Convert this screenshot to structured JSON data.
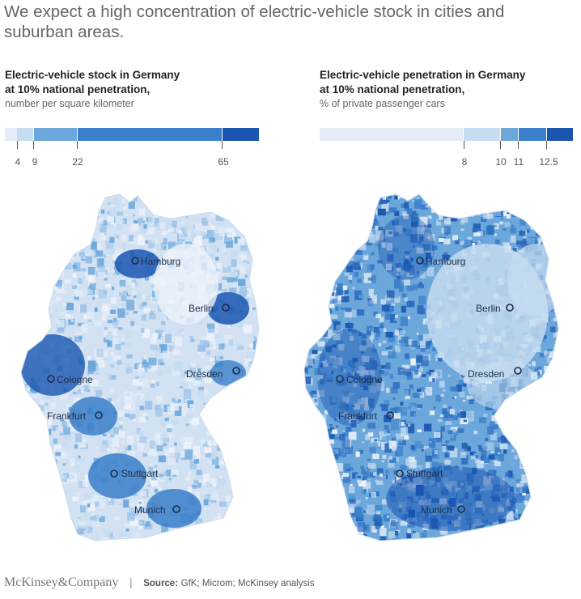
{
  "headline": "We expect a high concentration of electric-vehicle stock in cities and suburban areas.",
  "left_panel": {
    "title_line1": "Electric-vehicle stock in Germany",
    "title_line2": "at 10% national penetration,",
    "subtitle": "number per square kilometer",
    "legend": {
      "breaks": [
        "4",
        "9",
        "22",
        "65"
      ],
      "colors": [
        "#e3ecf7",
        "#c6dcf0",
        "#6ba7db",
        "#3a7fc9",
        "#1a56b0"
      ]
    },
    "cities": [
      "Hamburg",
      "Berlin",
      "Cologne",
      "Dresden",
      "Frankfurt",
      "Stuttgart",
      "Munich"
    ]
  },
  "right_panel": {
    "title_line1": "Electric-vehicle penetration in Germany",
    "title_line2": "at 10% national penetration,",
    "subtitle": "% of private passenger cars",
    "legend": {
      "breaks": [
        "8",
        "10",
        "11",
        "12.5"
      ],
      "colors": [
        "#e3ecf7",
        "#c6dcf0",
        "#6ba7db",
        "#3a7fc9",
        "#1a56b0"
      ]
    },
    "cities": [
      "Hamburg",
      "Berlin",
      "Cologne",
      "Dresden",
      "Frankfurt",
      "Stuttgart",
      "Munich"
    ]
  },
  "footer": {
    "brand": "McKinsey&Company",
    "source_label": "Source:",
    "source_text": "GfK; Microm; McKinsey analysis"
  }
}
